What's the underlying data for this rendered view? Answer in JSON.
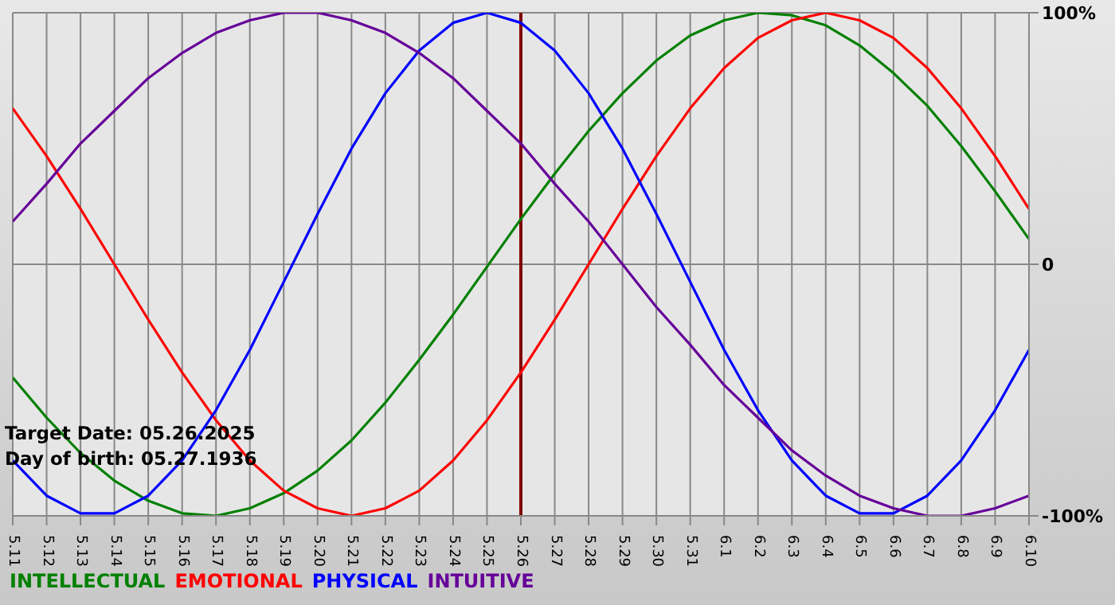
{
  "chart_data": {
    "type": "line",
    "categories": [
      "5.11",
      "5.12",
      "5.13",
      "5.14",
      "5.15",
      "5.16",
      "5.17",
      "5.18",
      "5.19",
      "5.20",
      "5.21",
      "5.22",
      "5.23",
      "5.24",
      "5.25",
      "5.26",
      "5.27",
      "5.28",
      "5.29",
      "5.30",
      "5.31",
      "6.1",
      "6.2",
      "6.3",
      "6.4",
      "6.5",
      "6.6",
      "6.7",
      "6.8",
      "6.9",
      "6.10"
    ],
    "series": [
      {
        "name": "INTELLECTUAL",
        "color": "#008000",
        "values": [
          -45,
          -61,
          -75,
          -86,
          -94,
          -99,
          -100,
          -97,
          -91,
          -82,
          -70,
          -55,
          -38,
          -20,
          -1,
          18,
          36,
          53,
          68,
          81,
          91,
          97,
          100,
          99,
          95,
          87,
          76,
          63,
          47,
          29,
          10
        ]
      },
      {
        "name": "EMOTIONAL",
        "color": "#ff0000",
        "values": [
          62,
          43,
          22,
          0,
          -22,
          -43,
          -62,
          -78,
          -90,
          -97,
          -100,
          -97,
          -90,
          -78,
          -62,
          -43,
          -22,
          0,
          22,
          43,
          62,
          78,
          90,
          97,
          100,
          97,
          90,
          78,
          62,
          43,
          22
        ]
      },
      {
        "name": "PHYSICAL",
        "color": "#0000ff",
        "values": [
          -78,
          -92,
          -99,
          -99,
          -92,
          -78,
          -58,
          -34,
          -7,
          20,
          46,
          68,
          85,
          96,
          100,
          96,
          85,
          68,
          46,
          20,
          -7,
          -34,
          -58,
          -78,
          -92,
          -99,
          -99,
          -92,
          -78,
          -58,
          -34
        ]
      },
      {
        "name": "INTUITIVE",
        "color": "#660099",
        "values": [
          17,
          32,
          48,
          61,
          74,
          84,
          92,
          97,
          100,
          100,
          97,
          92,
          84,
          74,
          61,
          48,
          32,
          17,
          0,
          -17,
          -32,
          -48,
          -61,
          -74,
          -84,
          -92,
          -97,
          -100,
          -100,
          -97,
          -92
        ]
      }
    ],
    "ylim": [
      -100,
      100
    ],
    "yticks": [
      {
        "value": 100,
        "label": "100%"
      },
      0,
      {
        "value": -100,
        "label": "-100%"
      }
    ],
    "grid": true,
    "legend": "bottom left",
    "marker": "none",
    "line_style": "solid",
    "ref_lines": [
      {
        "axis": "x",
        "value": "5.26",
        "label": null,
        "color": "#800000"
      }
    ],
    "annotations": [
      "Target Date: 05.26.2025",
      "Day of birth: 05.27.1936"
    ]
  }
}
